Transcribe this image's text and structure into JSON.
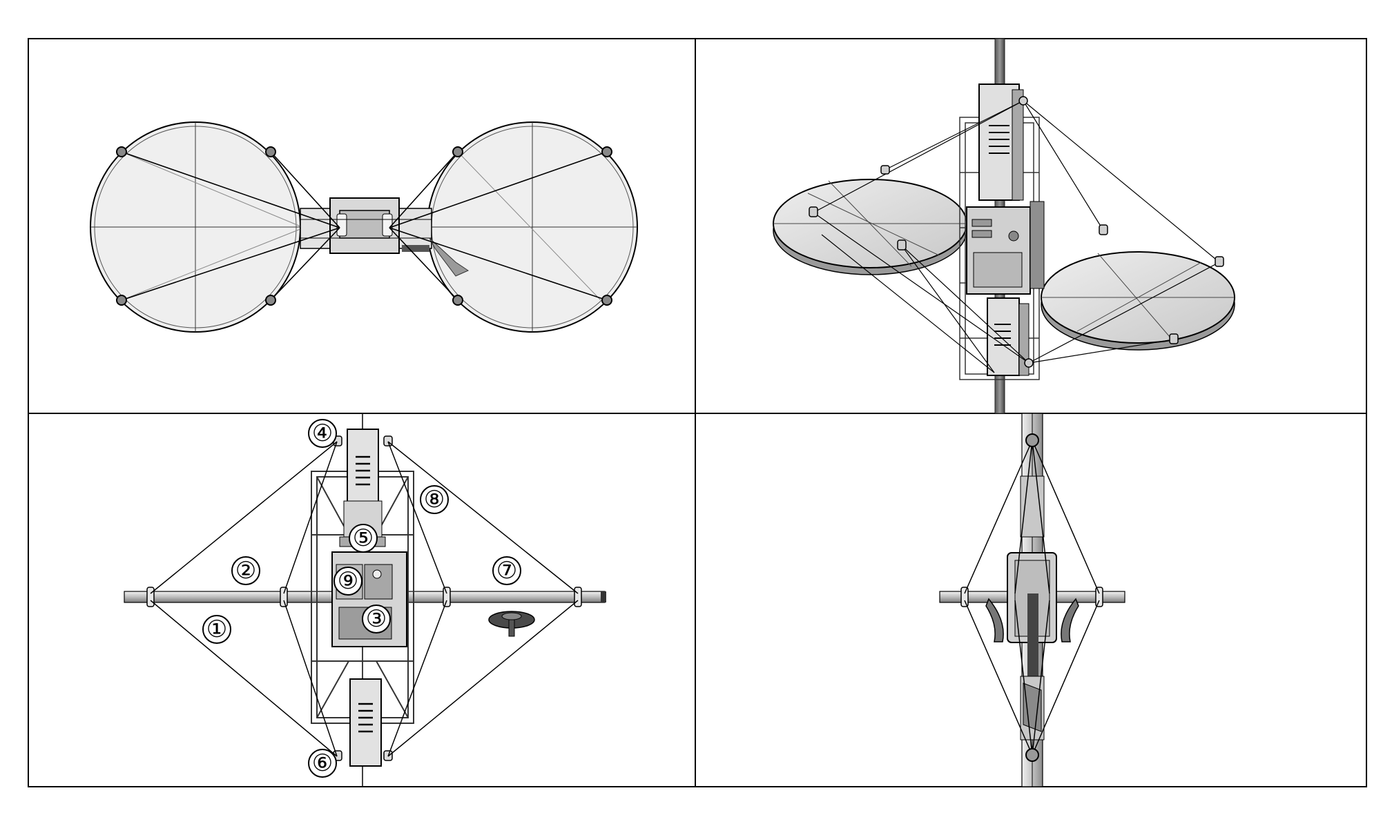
{
  "figure": {
    "panels": [
      {
        "id": "top-view"
      },
      {
        "id": "isometric-view"
      },
      {
        "id": "front-view"
      },
      {
        "id": "side-view"
      }
    ],
    "callouts": [
      "①",
      "②",
      "③",
      "④",
      "⑤",
      "⑥",
      "⑦",
      "⑧",
      "⑨"
    ]
  },
  "colors": {
    "line": "#000000",
    "disk_fill": "#ececec",
    "disk_fill_iso": "#d9d9d9",
    "body_fill": "#d6d6d6",
    "body_dark": "#9a9a9a",
    "panel_bg": "#ffffff"
  }
}
